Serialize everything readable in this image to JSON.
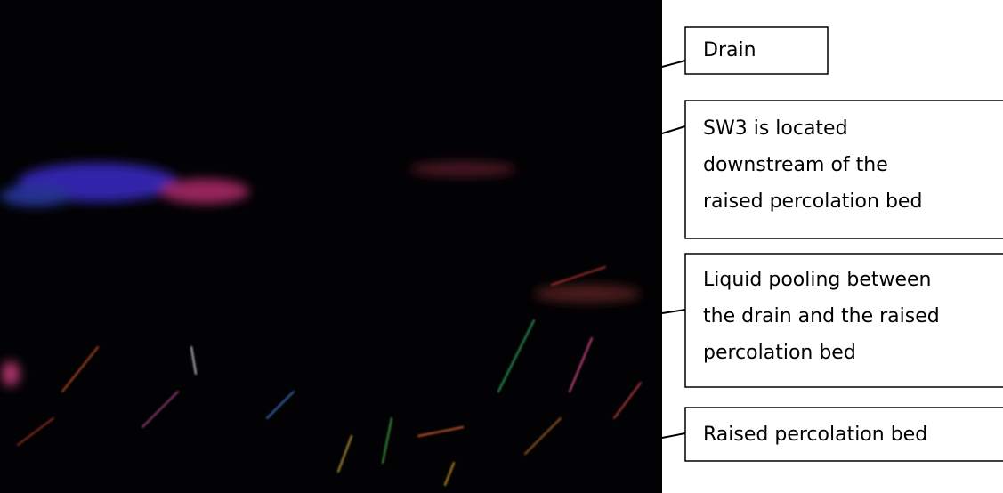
{
  "callouts": [
    {
      "lines": [
        "Drain"
      ]
    },
    {
      "lines": [
        "SW3 is located",
        "downstream of the",
        "raised percolation bed"
      ]
    },
    {
      "lines": [
        "Liquid pooling between",
        "the drain and the raised",
        "percolation bed"
      ]
    },
    {
      "lines": [
        "Raised percolation bed"
      ]
    }
  ]
}
